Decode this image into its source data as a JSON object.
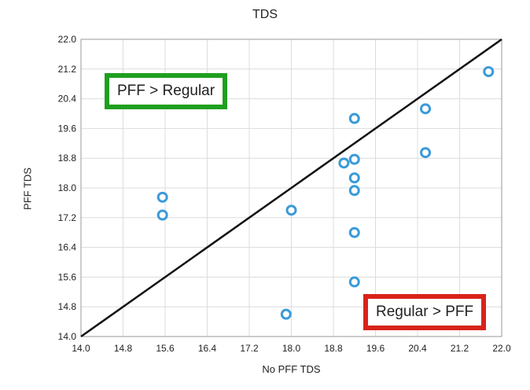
{
  "chart_data": {
    "type": "scatter",
    "title": "TDS",
    "xlabel": "No PFF TDS",
    "ylabel": "PFF TDS",
    "xlim": [
      14.0,
      22.0
    ],
    "ylim": [
      14.0,
      22.0
    ],
    "xticks": [
      "14.0",
      "14.8",
      "15.6",
      "16.4",
      "17.2",
      "18.0",
      "18.8",
      "19.6",
      "20.4",
      "21.2",
      "22.0"
    ],
    "yticks": [
      "14.0",
      "14.8",
      "15.6",
      "16.4",
      "17.2",
      "18.0",
      "18.8",
      "19.6",
      "20.4",
      "21.2",
      "22.0"
    ],
    "grid": true,
    "reference_line": {
      "from": [
        14.0,
        14.0
      ],
      "to": [
        22.0,
        22.0
      ],
      "color": "#111111"
    },
    "marker_color": "#3a9ad9",
    "points": [
      {
        "x": 15.55,
        "y": 17.75
      },
      {
        "x": 15.55,
        "y": 17.27
      },
      {
        "x": 17.9,
        "y": 14.6
      },
      {
        "x": 18.0,
        "y": 17.4
      },
      {
        "x": 19.0,
        "y": 18.67
      },
      {
        "x": 19.2,
        "y": 19.87
      },
      {
        "x": 19.2,
        "y": 18.77
      },
      {
        "x": 19.2,
        "y": 18.27
      },
      {
        "x": 19.2,
        "y": 17.93
      },
      {
        "x": 19.2,
        "y": 16.8
      },
      {
        "x": 19.2,
        "y": 15.47
      },
      {
        "x": 20.55,
        "y": 20.13
      },
      {
        "x": 20.55,
        "y": 18.95
      },
      {
        "x": 21.75,
        "y": 21.13
      }
    ],
    "annotations": [
      {
        "text": "PFF > Regular",
        "color": "#1f9f1f"
      },
      {
        "text": "Regular > PFF",
        "color": "#d9231a"
      }
    ]
  }
}
